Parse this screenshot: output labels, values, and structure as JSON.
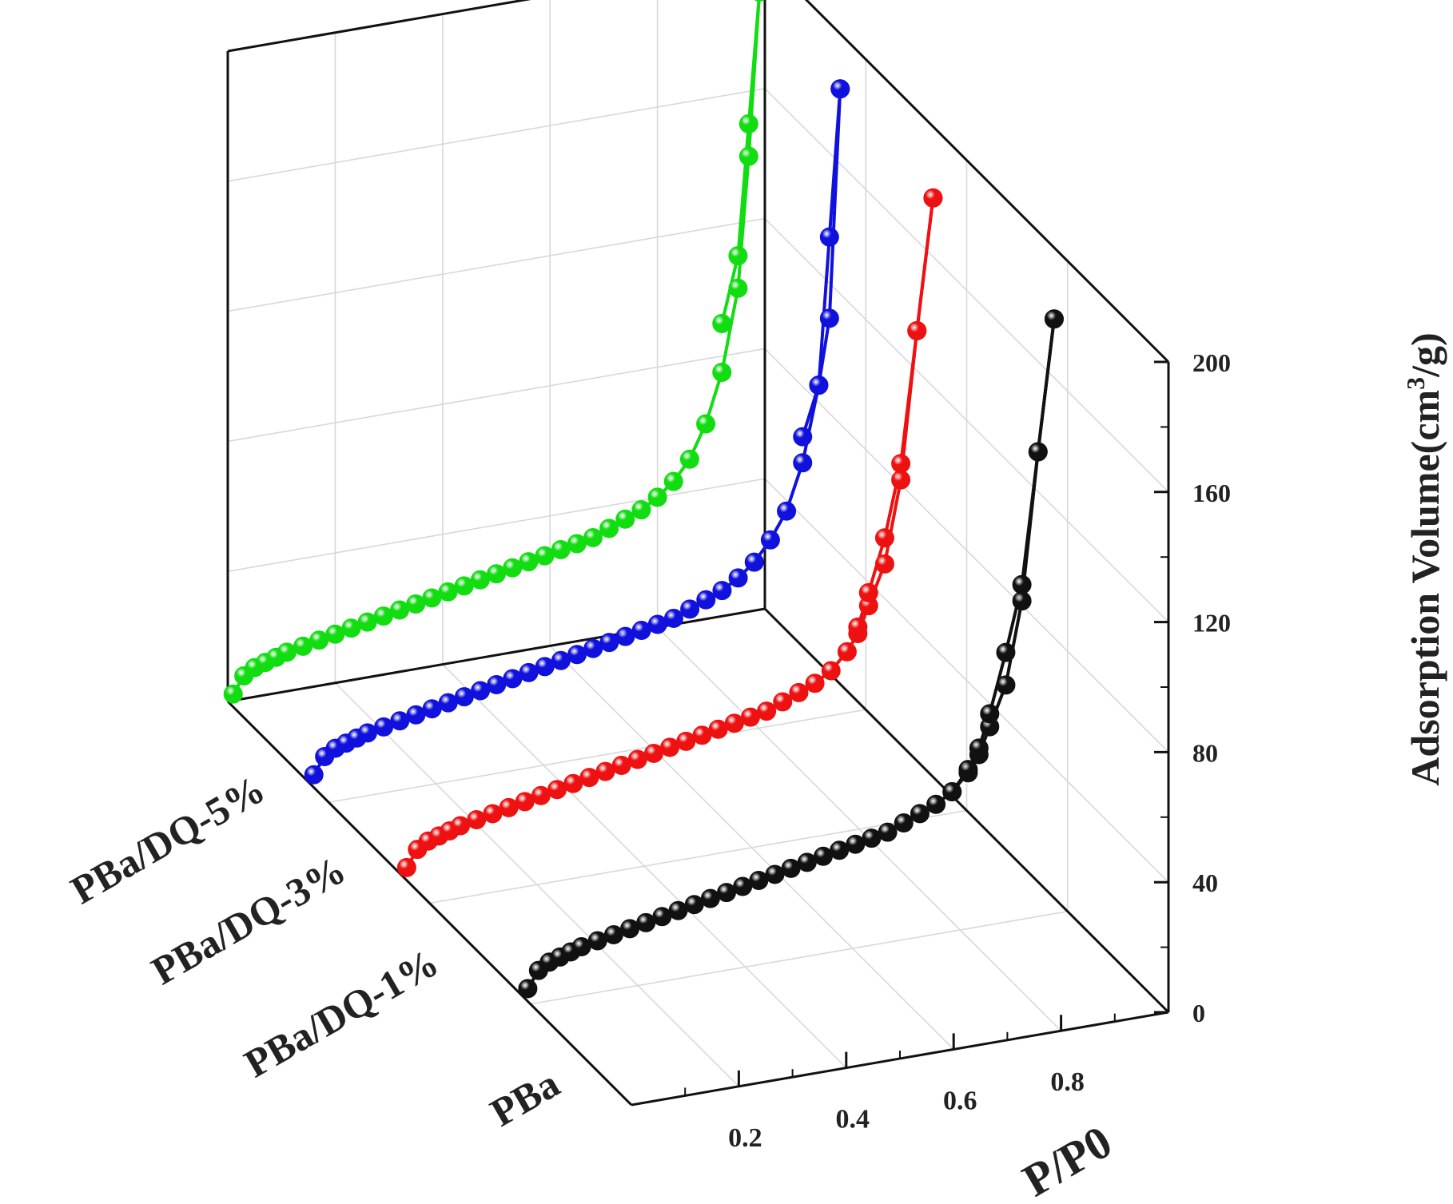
{
  "chart_data": {
    "type": "line",
    "title": "",
    "xlabel": "P/P0",
    "ylabel_prefix": "Adsorption Volume(cm",
    "ylabel_sup": "3",
    "ylabel_suffix": "/g)",
    "xlim": [
      0,
      1.0
    ],
    "ylim": [
      0,
      200
    ],
    "x_ticks": [
      "0.2",
      "0.4",
      "0.6",
      "0.8"
    ],
    "x_tick_values": [
      0.2,
      0.4,
      0.6,
      0.8
    ],
    "y_ticks": [
      "0",
      "40",
      "80",
      "120",
      "160",
      "200"
    ],
    "y_tick_values": [
      0,
      40,
      80,
      120,
      160,
      200
    ],
    "grid": true,
    "marker": "sphere",
    "series": [
      {
        "name": "PBa",
        "color": "#111111",
        "adsorption": {
          "x": [
            0.01,
            0.03,
            0.05,
            0.07,
            0.09,
            0.11,
            0.14,
            0.17,
            0.2,
            0.23,
            0.26,
            0.29,
            0.32,
            0.35,
            0.38,
            0.41,
            0.44,
            0.47,
            0.5,
            0.53,
            0.56,
            0.59,
            0.62,
            0.65,
            0.68,
            0.71,
            0.74,
            0.77,
            0.8,
            0.83,
            0.85,
            0.87,
            0.9,
            0.93,
            0.96,
            0.99
          ],
          "y": [
            2,
            7,
            9,
            10,
            11,
            12,
            13,
            14,
            15,
            16,
            17,
            18,
            19,
            20,
            21,
            22,
            23,
            24,
            25,
            26,
            27,
            28,
            29,
            30,
            31,
            33,
            35,
            37,
            40,
            45,
            50,
            58,
            70,
            95,
            140,
            180
          ]
        },
        "desorption": {
          "x": [
            0.99,
            0.96,
            0.93,
            0.9,
            0.87,
            0.85,
            0.83,
            0.8
          ],
          "y": [
            180,
            140,
            100,
            80,
            62,
            52,
            46,
            40
          ]
        }
      },
      {
        "name": "PBa/DQ-1%",
        "color": "#ee1111",
        "adsorption": {
          "x": [
            0.01,
            0.03,
            0.05,
            0.07,
            0.09,
            0.11,
            0.14,
            0.17,
            0.2,
            0.23,
            0.26,
            0.29,
            0.32,
            0.35,
            0.38,
            0.41,
            0.44,
            0.47,
            0.5,
            0.53,
            0.56,
            0.59,
            0.62,
            0.65,
            0.68,
            0.71,
            0.74,
            0.77,
            0.8,
            0.83,
            0.85,
            0.87,
            0.9,
            0.93,
            0.96,
            0.99
          ],
          "y": [
            2,
            7,
            9,
            10,
            11,
            12,
            13,
            14,
            15,
            16,
            17,
            18,
            19,
            20,
            21,
            22,
            23,
            24,
            25,
            26,
            27,
            28,
            29,
            30,
            31,
            33,
            35,
            37,
            40,
            45,
            50,
            58,
            70,
            95,
            140,
            180
          ]
        },
        "desorption": {
          "x": [
            0.99,
            0.96,
            0.93,
            0.9,
            0.87,
            0.85
          ],
          "y": [
            180,
            140,
            100,
            78,
            62,
            52
          ]
        }
      },
      {
        "name": "PBa/DQ-3%",
        "color": "#1111dd",
        "adsorption": {
          "x": [
            0.01,
            0.03,
            0.05,
            0.07,
            0.09,
            0.11,
            0.14,
            0.17,
            0.2,
            0.23,
            0.26,
            0.29,
            0.32,
            0.35,
            0.38,
            0.41,
            0.44,
            0.47,
            0.5,
            0.53,
            0.56,
            0.59,
            0.62,
            0.65,
            0.68,
            0.71,
            0.74,
            0.77,
            0.8,
            0.83,
            0.86,
            0.89,
            0.92,
            0.95,
            0.97,
            0.99
          ],
          "y": [
            2,
            7,
            9,
            10,
            11,
            12,
            13,
            14,
            15,
            16,
            17,
            18,
            19,
            20,
            21,
            22,
            23,
            24,
            25,
            26,
            27,
            28,
            29,
            30,
            31,
            33,
            35,
            37,
            40,
            44,
            50,
            58,
            72,
            95,
            140,
            185
          ]
        },
        "desorption": {
          "x": [
            0.99,
            0.97,
            0.95,
            0.92
          ],
          "y": [
            185,
            115,
            95,
            80
          ]
        }
      },
      {
        "name": "PBa/DQ-5%",
        "color": "#11dd11",
        "adsorption": {
          "x": [
            0.01,
            0.03,
            0.05,
            0.07,
            0.09,
            0.11,
            0.14,
            0.17,
            0.2,
            0.23,
            0.26,
            0.29,
            0.32,
            0.35,
            0.38,
            0.41,
            0.44,
            0.47,
            0.5,
            0.53,
            0.56,
            0.59,
            0.62,
            0.65,
            0.68,
            0.71,
            0.74,
            0.77,
            0.8,
            0.83,
            0.86,
            0.89,
            0.92,
            0.95,
            0.97,
            0.99
          ],
          "y": [
            2,
            7,
            9,
            10,
            11,
            12,
            13,
            14,
            15,
            16,
            17,
            18,
            19,
            20,
            21,
            22,
            23,
            24,
            25,
            26,
            27,
            28,
            29,
            30,
            31,
            33,
            35,
            37,
            40,
            44,
            50,
            60,
            75,
            100,
            140,
            190
          ]
        },
        "desorption": {
          "x": [
            0.99,
            0.97,
            0.95,
            0.92
          ],
          "y": [
            190,
            150,
            110,
            90
          ]
        }
      }
    ]
  }
}
